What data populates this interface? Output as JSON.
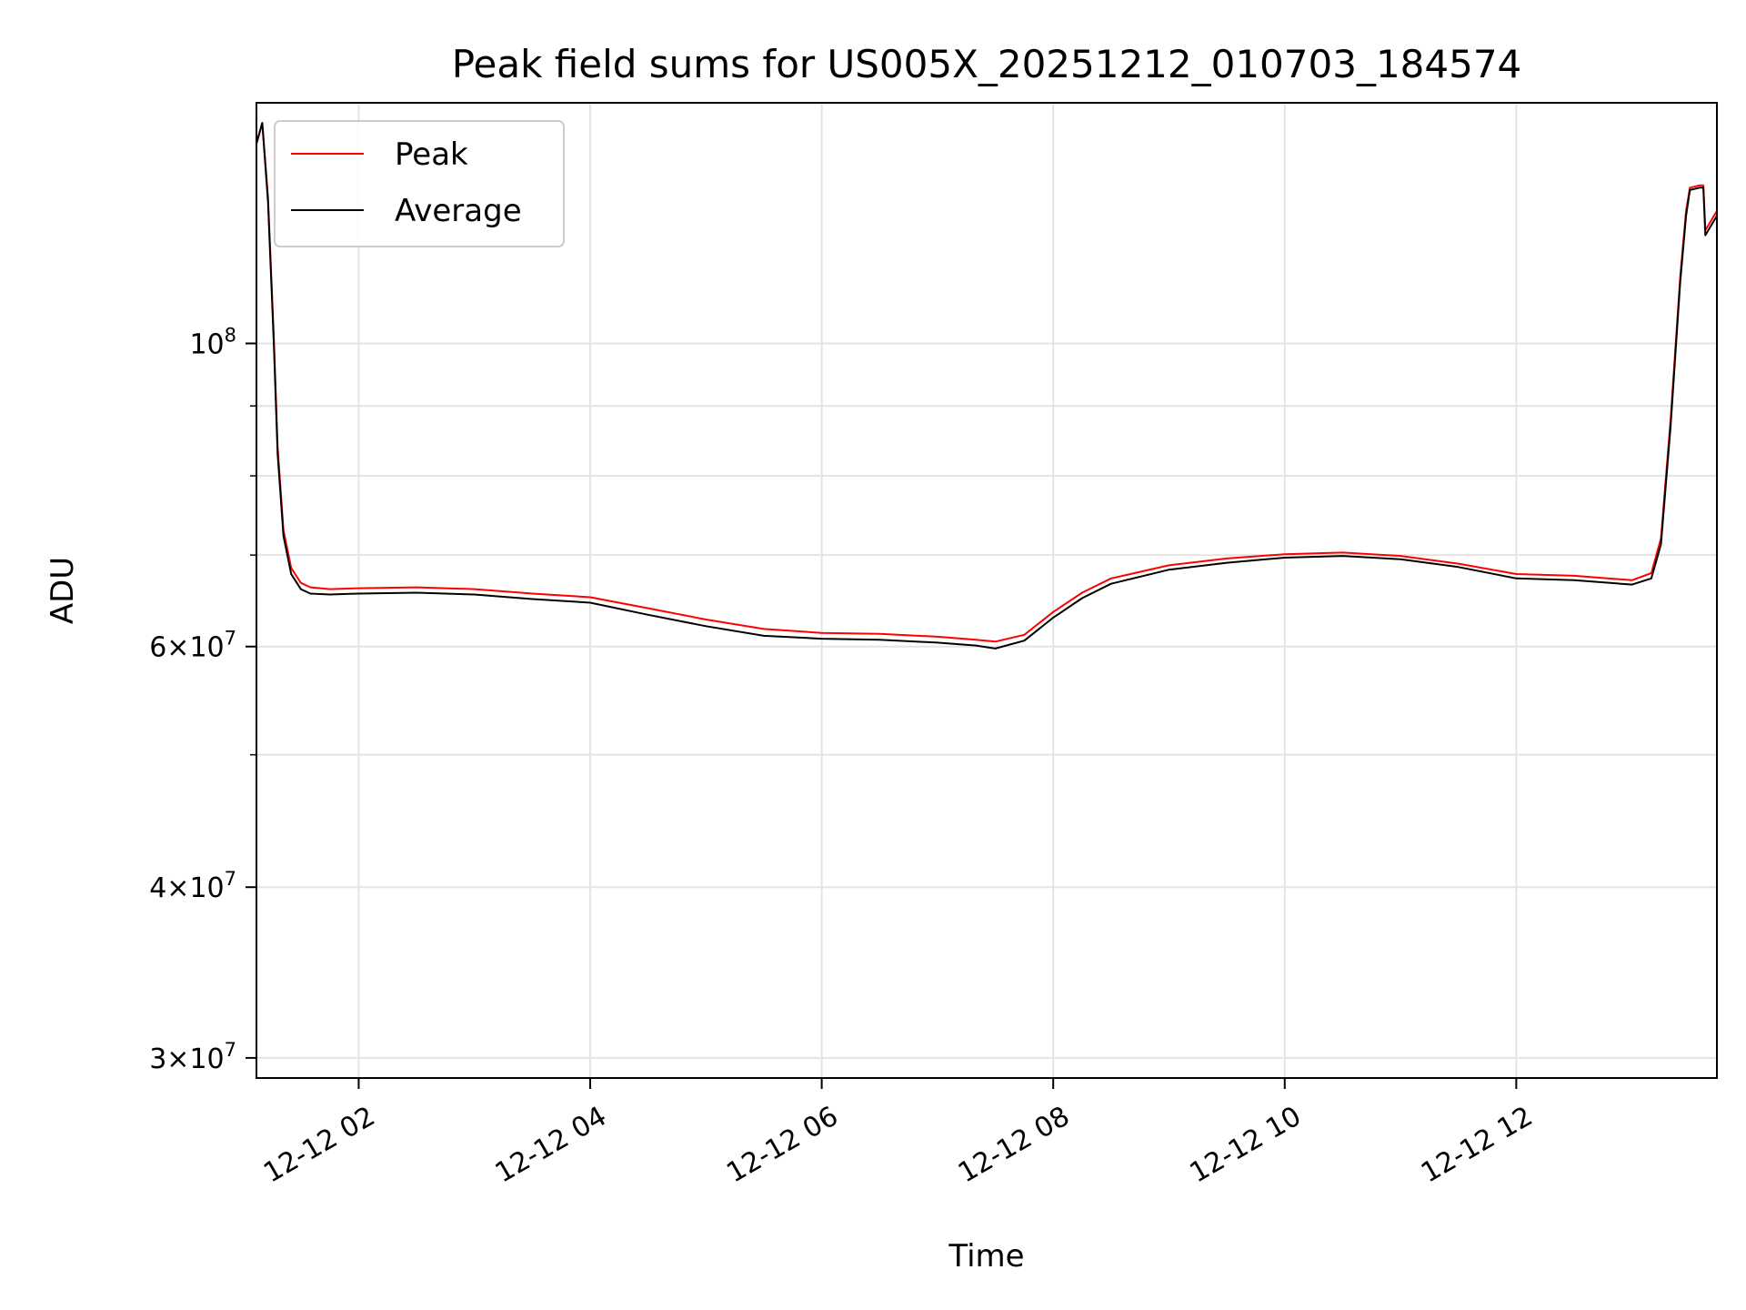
{
  "chart_data": {
    "type": "line",
    "title": "Peak field sums for US005X_20251212_010703_184574",
    "xlabel": "Time",
    "ylabel": "ADU",
    "y_scale": "log",
    "ylim": [
      29000000,
      150000000
    ],
    "xlim": [
      "2025-12-12 01:07",
      "2025-12-12 13:44"
    ],
    "grid": true,
    "legend_position": "top-left",
    "x_ticks": [
      {
        "t": "2025-12-12 02:00",
        "label": "12-12 02"
      },
      {
        "t": "2025-12-12 04:00",
        "label": "12-12 04"
      },
      {
        "t": "2025-12-12 06:00",
        "label": "12-12 06"
      },
      {
        "t": "2025-12-12 08:00",
        "label": "12-12 08"
      },
      {
        "t": "2025-12-12 10:00",
        "label": "12-12 10"
      },
      {
        "t": "2025-12-12 12:00",
        "label": "12-12 12"
      }
    ],
    "y_ticks": [
      {
        "value": 30000000,
        "mant": "3",
        "base": "10",
        "exp": "7"
      },
      {
        "value": 40000000,
        "mant": "4",
        "base": "10",
        "exp": "7"
      },
      {
        "value": 60000000,
        "mant": "6",
        "base": "10",
        "exp": "7"
      },
      {
        "value": 100000000,
        "mant": "",
        "base": "10",
        "exp": "8"
      }
    ],
    "y_minor_ticks": [
      50000000,
      70000000,
      80000000,
      90000000
    ],
    "series": [
      {
        "name": "Peak",
        "color": "#ff0000",
        "x": [
          "2025-12-12 01:07",
          "2025-12-12 01:10",
          "2025-12-12 01:13",
          "2025-12-12 01:16",
          "2025-12-12 01:18",
          "2025-12-12 01:21",
          "2025-12-12 01:25",
          "2025-12-12 01:30",
          "2025-12-12 01:35",
          "2025-12-12 01:45",
          "2025-12-12 02:00",
          "2025-12-12 02:30",
          "2025-12-12 03:00",
          "2025-12-12 03:30",
          "2025-12-12 04:00",
          "2025-12-12 04:30",
          "2025-12-12 05:00",
          "2025-12-12 05:30",
          "2025-12-12 06:00",
          "2025-12-12 06:30",
          "2025-12-12 07:00",
          "2025-12-12 07:20",
          "2025-12-12 07:30",
          "2025-12-12 07:45",
          "2025-12-12 08:00",
          "2025-12-12 08:15",
          "2025-12-12 08:30",
          "2025-12-12 09:00",
          "2025-12-12 09:30",
          "2025-12-12 10:00",
          "2025-12-12 10:30",
          "2025-12-12 11:00",
          "2025-12-12 11:30",
          "2025-12-12 12:00",
          "2025-12-12 12:30",
          "2025-12-12 13:00",
          "2025-12-12 13:10",
          "2025-12-12 13:15",
          "2025-12-12 13:20",
          "2025-12-12 13:25",
          "2025-12-12 13:28",
          "2025-12-12 13:30",
          "2025-12-12 13:35",
          "2025-12-12 13:37",
          "2025-12-12 13:38",
          "2025-12-12 13:44"
        ],
        "values": [
          140000000,
          145000000,
          128000000,
          101000000,
          84000000,
          73000000,
          68500000,
          66800000,
          66300000,
          66100000,
          66200000,
          66300000,
          66100000,
          65600000,
          65200000,
          64000000,
          62800000,
          61800000,
          61400000,
          61300000,
          61000000,
          60700000,
          60500000,
          61200000,
          63600000,
          65700000,
          67300000,
          68800000,
          69600000,
          70100000,
          70300000,
          69900000,
          69000000,
          67800000,
          67600000,
          67100000,
          67900000,
          72000000,
          88000000,
          112000000,
          125000000,
          130000000,
          130500000,
          130500000,
          121000000,
          125000000
        ]
      },
      {
        "name": "Average",
        "color": "#000000",
        "x": [
          "2025-12-12 01:07",
          "2025-12-12 01:10",
          "2025-12-12 01:13",
          "2025-12-12 01:16",
          "2025-12-12 01:18",
          "2025-12-12 01:21",
          "2025-12-12 01:25",
          "2025-12-12 01:30",
          "2025-12-12 01:35",
          "2025-12-12 01:45",
          "2025-12-12 02:00",
          "2025-12-12 02:30",
          "2025-12-12 03:00",
          "2025-12-12 03:30",
          "2025-12-12 04:00",
          "2025-12-12 04:30",
          "2025-12-12 05:00",
          "2025-12-12 05:30",
          "2025-12-12 06:00",
          "2025-12-12 06:30",
          "2025-12-12 07:00",
          "2025-12-12 07:20",
          "2025-12-12 07:30",
          "2025-12-12 07:45",
          "2025-12-12 08:00",
          "2025-12-12 08:15",
          "2025-12-12 08:30",
          "2025-12-12 09:00",
          "2025-12-12 09:30",
          "2025-12-12 10:00",
          "2025-12-12 10:30",
          "2025-12-12 11:00",
          "2025-12-12 11:30",
          "2025-12-12 12:00",
          "2025-12-12 12:30",
          "2025-12-12 13:00",
          "2025-12-12 13:10",
          "2025-12-12 13:15",
          "2025-12-12 13:20",
          "2025-12-12 13:25",
          "2025-12-12 13:28",
          "2025-12-12 13:30",
          "2025-12-12 13:35",
          "2025-12-12 13:37",
          "2025-12-12 13:38",
          "2025-12-12 13:44"
        ],
        "values": [
          140000000,
          145000000,
          127000000,
          100000000,
          83000000,
          72300000,
          67800000,
          66100000,
          65600000,
          65500000,
          65600000,
          65700000,
          65500000,
          65000000,
          64600000,
          63300000,
          62100000,
          61100000,
          60800000,
          60700000,
          60400000,
          60100000,
          59800000,
          60600000,
          63000000,
          65100000,
          66700000,
          68300000,
          69100000,
          69700000,
          69900000,
          69500000,
          68600000,
          67300000,
          67100000,
          66600000,
          67300000,
          71300000,
          87000000,
          111000000,
          124000000,
          129500000,
          130000000,
          130000000,
          120000000,
          124000000
        ]
      }
    ]
  }
}
